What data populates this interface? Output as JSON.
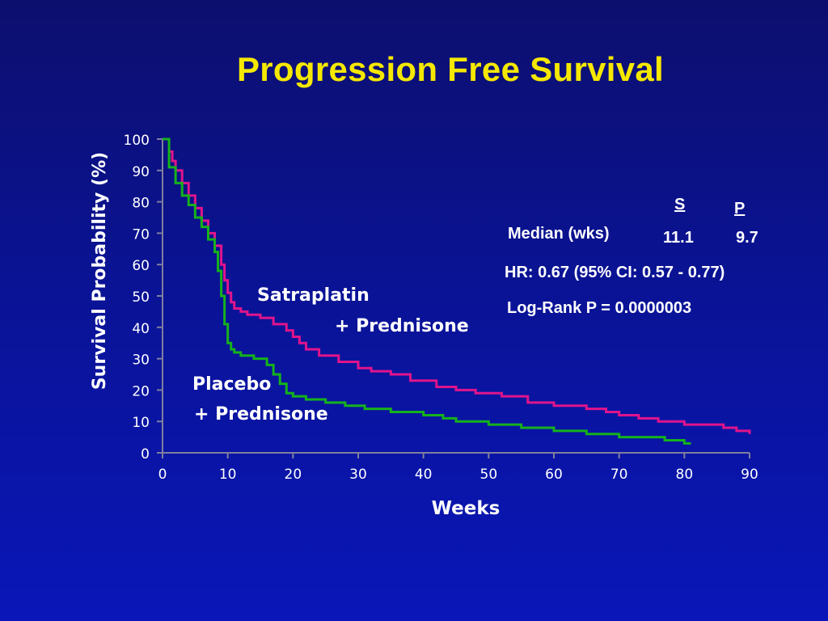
{
  "title": "Progression Free Survival",
  "colors": {
    "background": "#0a1394",
    "title": "#f5e800",
    "satraplatin": "#e0148c",
    "placebo": "#15b21c",
    "text": "#ffffff"
  },
  "annotations": {
    "col_s": "S",
    "col_p": "P",
    "median_label": "Median (wks)",
    "median_s": "11.1",
    "median_p": "9.7",
    "hr": "HR: 0.67 (95% CI: 0.57 - 0.77)",
    "logrank": "Log-Rank P = 0.0000003"
  },
  "line_labels": {
    "satraplatin_1": "Satraplatin",
    "satraplatin_2": "+ Prednisone",
    "placebo_1": "Placebo",
    "placebo_2": "+ Prednisone"
  },
  "chart_data": {
    "type": "line",
    "step": true,
    "title": "Progression Free Survival",
    "xlabel": "Weeks",
    "ylabel": "Survival Probability (%)",
    "xlim": [
      0,
      90
    ],
    "ylim": [
      0,
      100
    ],
    "xticks": [
      0,
      10,
      20,
      30,
      40,
      50,
      60,
      70,
      80,
      90
    ],
    "yticks": [
      0,
      10,
      20,
      30,
      40,
      50,
      60,
      70,
      80,
      90,
      100
    ],
    "grid": false,
    "series": [
      {
        "name": "Satraplatin + Prednisone",
        "color": "#e0148c",
        "x": [
          1,
          1.5,
          2,
          3,
          4,
          5,
          6,
          7,
          8,
          9,
          9.5,
          10,
          10.5,
          11,
          12,
          13,
          15,
          17,
          19,
          20,
          21,
          22,
          24,
          27,
          30,
          32,
          35,
          38,
          42,
          45,
          48,
          52,
          56,
          60,
          65,
          68,
          70,
          73,
          76,
          80,
          84,
          86,
          88,
          89,
          90
        ],
        "y": [
          96,
          93,
          90,
          86,
          82,
          78,
          74,
          70,
          66,
          60,
          55,
          51,
          48,
          46,
          45,
          44,
          43,
          41,
          39,
          37,
          35,
          33,
          31,
          29,
          27,
          26,
          25,
          23,
          21,
          20,
          19,
          18,
          16,
          15,
          14,
          13,
          12,
          11,
          10,
          9,
          9,
          8,
          7,
          7,
          6
        ]
      },
      {
        "name": "Placebo + Prednisone",
        "color": "#15b21c",
        "x": [
          0,
          0.5,
          1,
          2,
          3,
          4,
          5,
          6,
          7,
          8,
          8.5,
          9,
          9.5,
          10,
          10.5,
          11,
          12,
          14,
          16,
          17,
          18,
          19,
          20,
          22,
          25,
          28,
          31,
          35,
          40,
          43,
          45,
          50,
          55,
          60,
          65,
          70,
          75,
          77,
          80,
          81
        ],
        "y": [
          100,
          100,
          91,
          86,
          82,
          79,
          75,
          72,
          68,
          64,
          58,
          50,
          41,
          35,
          33,
          32,
          31,
          30,
          28,
          25,
          22,
          19,
          18,
          17,
          16,
          15,
          14,
          13,
          12,
          11,
          10,
          9,
          8,
          7,
          6,
          5,
          5,
          4,
          3,
          3
        ]
      }
    ]
  }
}
